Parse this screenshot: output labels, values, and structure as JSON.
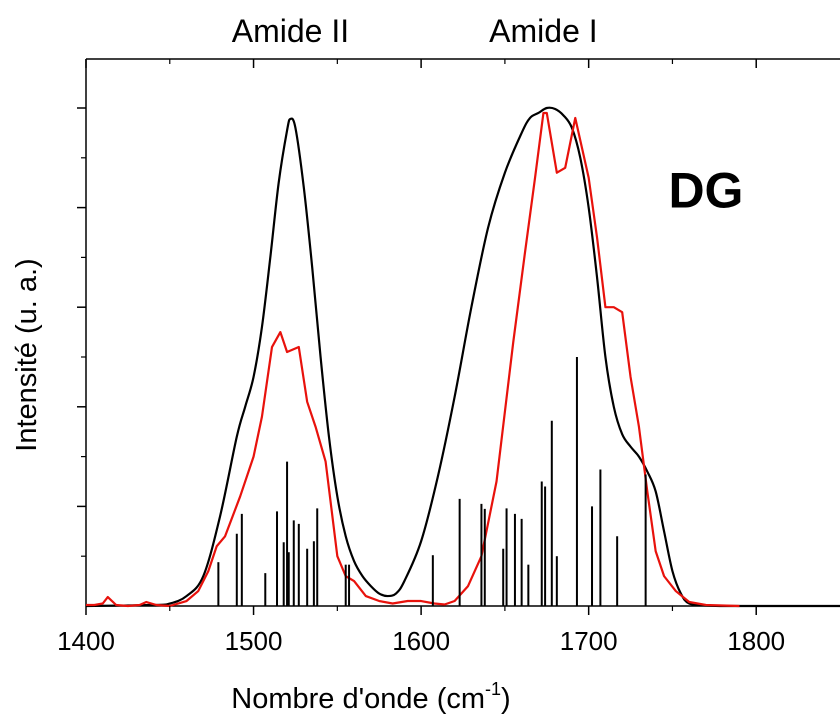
{
  "chart_data": {
    "type": "line",
    "title": "",
    "xlabel": "Nombre d'onde (cm",
    "xlabel_sup": "-1",
    "xlabel_suffix": ")",
    "ylabel": "Intensité (u. a.)",
    "xlim": [
      1400,
      1850
    ],
    "ylim": [
      0,
      1.0
    ],
    "x_ticks": [
      1400,
      1500,
      1600,
      1700,
      1800
    ],
    "x_tick_labels": [
      "1400",
      "1500",
      "1600",
      "1700",
      "1800"
    ],
    "y_tick_labels_shown": false,
    "grid": false,
    "annotations": [
      {
        "text": "Amide II",
        "x": 1522
      },
      {
        "text": "Amide I",
        "x": 1673
      },
      {
        "text": "DG",
        "x": 1770,
        "y": 0.84
      }
    ],
    "series": [
      {
        "color": "#000000",
        "style": "smooth",
        "x": [
          1400,
          1440,
          1450,
          1460,
          1470,
          1480,
          1490,
          1495,
          1500,
          1505,
          1510,
          1515,
          1520,
          1522,
          1525,
          1530,
          1535,
          1540,
          1545,
          1550,
          1555,
          1560,
          1565,
          1570,
          1575,
          1580,
          1585,
          1590,
          1600,
          1610,
          1620,
          1630,
          1640,
          1650,
          1660,
          1665,
          1670,
          1675,
          1680,
          1685,
          1690,
          1695,
          1700,
          1705,
          1710,
          1715,
          1720,
          1725,
          1730,
          1735,
          1740,
          1745,
          1750,
          1755,
          1760,
          1770,
          1780,
          1790,
          1850
        ],
        "y": [
          0.0,
          0.002,
          0.005,
          0.02,
          0.06,
          0.18,
          0.34,
          0.4,
          0.46,
          0.56,
          0.7,
          0.85,
          0.955,
          0.978,
          0.96,
          0.84,
          0.68,
          0.5,
          0.34,
          0.22,
          0.14,
          0.09,
          0.06,
          0.04,
          0.025,
          0.02,
          0.025,
          0.05,
          0.13,
          0.26,
          0.42,
          0.6,
          0.76,
          0.87,
          0.95,
          0.98,
          0.99,
          1.0,
          0.998,
          0.985,
          0.96,
          0.9,
          0.8,
          0.66,
          0.5,
          0.4,
          0.345,
          0.32,
          0.3,
          0.27,
          0.23,
          0.15,
          0.07,
          0.025,
          0.005,
          0.001,
          0.0,
          0.0,
          0.0
        ]
      },
      {
        "color": "#e8120c",
        "style": "linear",
        "x": [
          1400,
          1405,
          1410,
          1413,
          1418,
          1425,
          1432,
          1436,
          1442,
          1450,
          1460,
          1467,
          1473,
          1478,
          1483,
          1492,
          1500,
          1505,
          1511,
          1516,
          1520,
          1527,
          1532,
          1537,
          1543,
          1550,
          1555,
          1560,
          1567,
          1575,
          1583,
          1592,
          1600,
          1608,
          1614,
          1620,
          1628,
          1636,
          1645,
          1655,
          1662,
          1668,
          1673,
          1675,
          1681,
          1686,
          1692,
          1700,
          1705,
          1710,
          1715,
          1720,
          1725,
          1730,
          1735,
          1740,
          1745,
          1752,
          1760,
          1770,
          1780,
          1790
        ],
        "y": [
          0.002,
          0.002,
          0.005,
          0.018,
          0.002,
          0.0,
          0.002,
          0.008,
          0.002,
          0.0,
          0.01,
          0.03,
          0.07,
          0.12,
          0.14,
          0.22,
          0.3,
          0.38,
          0.52,
          0.55,
          0.51,
          0.52,
          0.41,
          0.36,
          0.29,
          0.1,
          0.06,
          0.05,
          0.02,
          0.01,
          0.005,
          0.01,
          0.01,
          0.005,
          0.003,
          0.01,
          0.04,
          0.1,
          0.25,
          0.53,
          0.71,
          0.86,
          0.99,
          0.99,
          0.87,
          0.88,
          0.98,
          0.86,
          0.74,
          0.6,
          0.6,
          0.59,
          0.46,
          0.36,
          0.23,
          0.11,
          0.06,
          0.03,
          0.008,
          0.002,
          0.001,
          0.0
        ]
      },
      {
        "color": "#000000",
        "style": "sticks",
        "x": [
          1479,
          1490,
          1493,
          1507,
          1514,
          1518,
          1520,
          1521,
          1524,
          1527,
          1532,
          1536,
          1538,
          1555,
          1557,
          1607,
          1623,
          1636,
          1638,
          1649,
          1651,
          1656,
          1660,
          1664,
          1672,
          1674,
          1678,
          1681,
          1693,
          1702,
          1707,
          1717,
          1734
        ],
        "y": [
          0.088,
          0.145,
          0.185,
          0.066,
          0.19,
          0.128,
          0.29,
          0.108,
          0.172,
          0.165,
          0.115,
          0.13,
          0.196,
          0.083,
          0.083,
          0.102,
          0.215,
          0.205,
          0.195,
          0.115,
          0.196,
          0.185,
          0.175,
          0.083,
          0.25,
          0.24,
          0.372,
          0.1,
          0.5,
          0.2,
          0.274,
          0.14,
          0.264
        ]
      }
    ]
  }
}
